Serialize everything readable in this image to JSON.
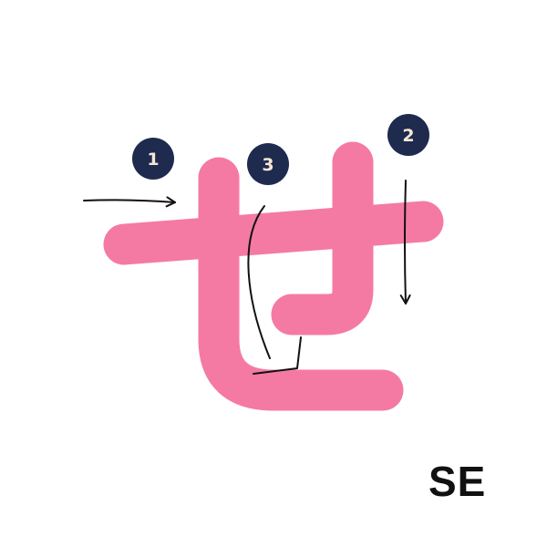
{
  "character": "せ",
  "romaji": "SE",
  "steps": [
    "1",
    "2",
    "3"
  ],
  "colors": {
    "stroke": "#F47AA4",
    "badge": "#1F2A4F",
    "badge_text": "#F6E7D4",
    "arrow": "#111111",
    "romaji": "#111111",
    "background": "#FFFFFF"
  },
  "icons": {
    "arrow": "hand-drawn-arrow-icon"
  }
}
